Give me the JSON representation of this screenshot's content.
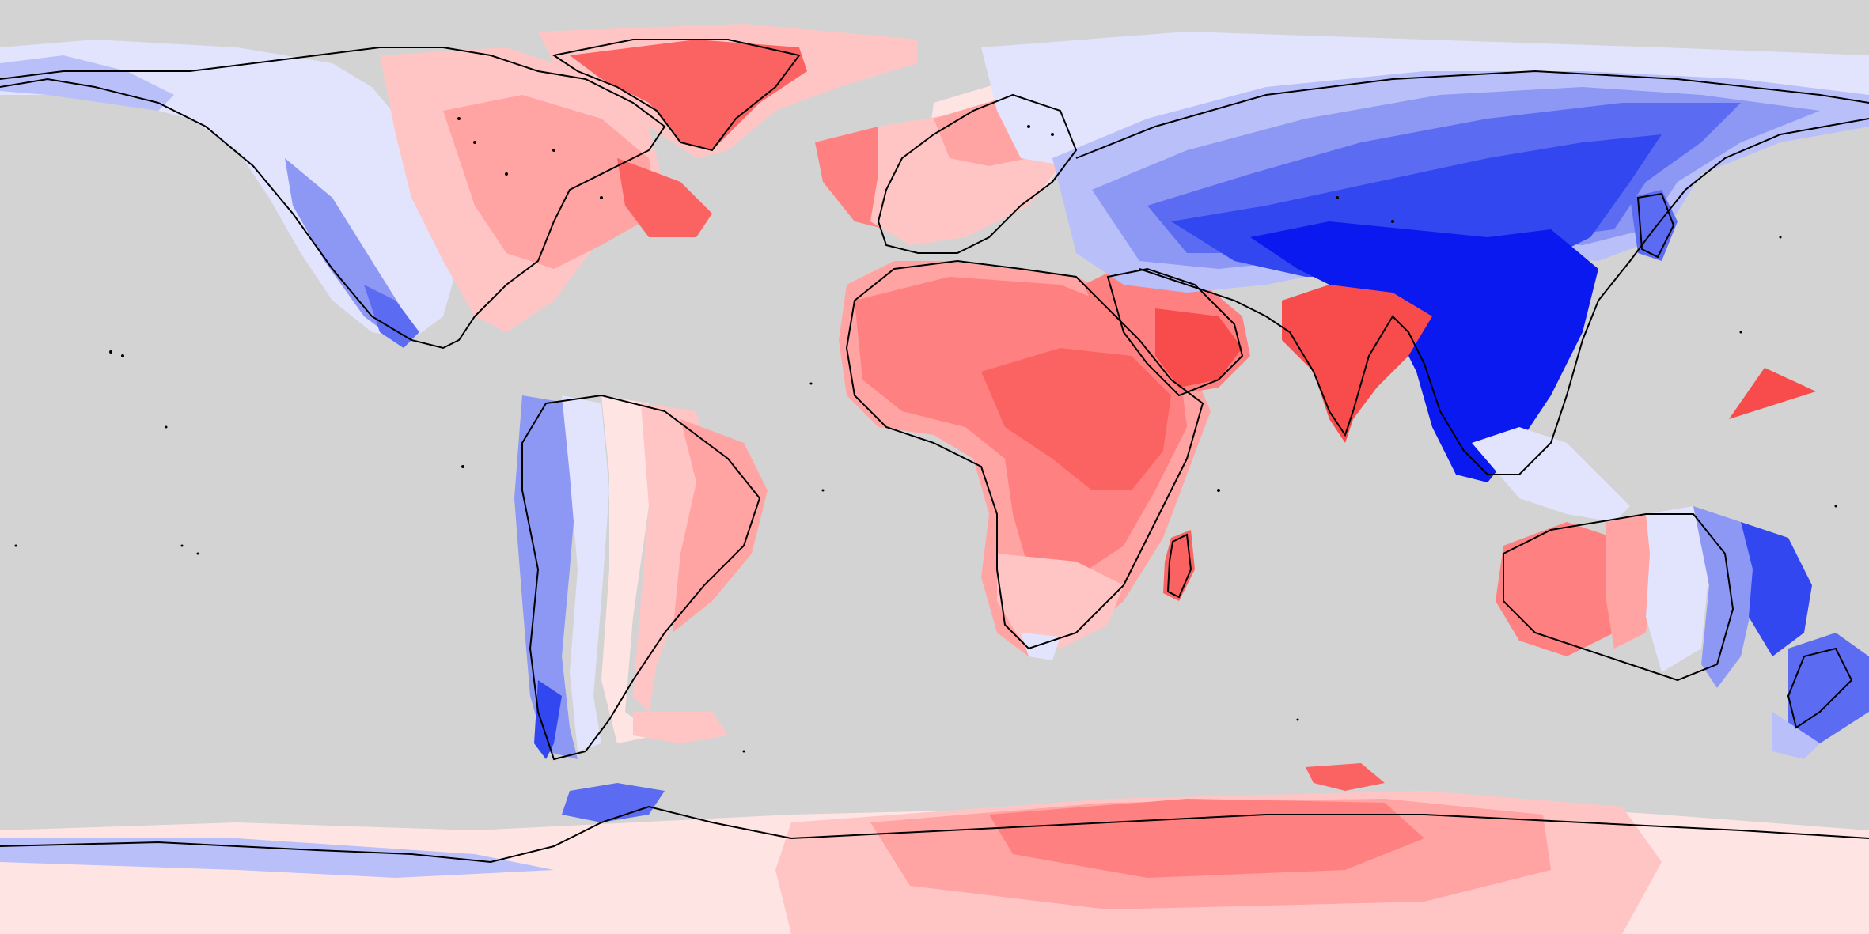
{
  "map": {
    "projection": "equirectangular",
    "background_color": "#d3d3d3",
    "coastline_color": "#000000",
    "color_scale": {
      "type": "diverging",
      "levels_blue": [
        "#0a19f0",
        "#3247f0",
        "#5c6cf2",
        "#8d97f4",
        "#b9bff8",
        "#e1e4fc"
      ],
      "levels_red": [
        "#ffe4e4",
        "#ffc5c5",
        "#ffa3a3",
        "#ff8080",
        "#fb6363",
        "#f84b4b"
      ]
    }
  }
}
